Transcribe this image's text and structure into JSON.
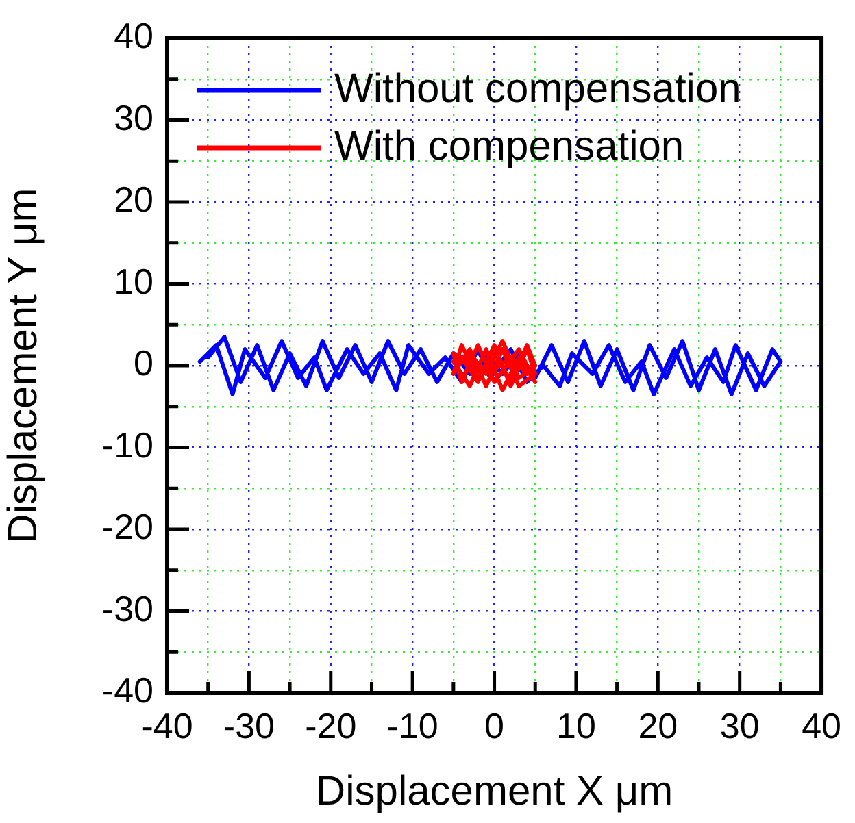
{
  "chart_data": {
    "type": "line",
    "xlabel": "Displacement X μm",
    "ylabel": "Displacement Y μm",
    "xlim": [
      -40,
      40
    ],
    "ylim": [
      -40,
      40
    ],
    "xticks": [
      -40,
      {
        "value": -35,
        "label": null
      },
      -30,
      {
        "value": -25,
        "label": null
      },
      -20,
      {
        "value": -15,
        "label": null
      },
      -10,
      {
        "value": -5,
        "label": null
      },
      0,
      {
        "value": 5,
        "label": null
      },
      10,
      {
        "value": 15,
        "label": null
      },
      20,
      {
        "value": 25,
        "label": null
      },
      30,
      {
        "value": 35,
        "label": null
      },
      40
    ],
    "yticks": [
      -40,
      {
        "value": -35,
        "label": null
      },
      -30,
      {
        "value": -25,
        "label": null
      },
      -20,
      {
        "value": -15,
        "label": null
      },
      -10,
      {
        "value": -5,
        "label": null
      },
      0,
      {
        "value": 5,
        "label": null
      },
      10,
      {
        "value": 15,
        "label": null
      },
      20,
      {
        "value": 25,
        "label": null
      },
      30,
      {
        "value": 35,
        "label": null
      },
      40
    ],
    "grid": true,
    "legend": "top left",
    "marker": "none",
    "line_style": "solid",
    "series": [
      {
        "name": "Without compensation",
        "color": "#0000ff",
        "x": [
          -35,
          -33,
          -31,
          -29,
          -27,
          -25,
          -23,
          -21,
          -19,
          -17,
          -15,
          -13,
          -11,
          -9,
          -7,
          -5,
          -3,
          -1,
          1,
          3,
          5,
          7,
          9,
          11,
          13,
          15,
          17,
          19,
          21,
          23,
          25,
          27,
          29,
          31,
          33,
          35,
          34,
          32,
          29.5,
          28,
          26,
          24,
          22,
          19.5,
          18,
          16,
          14,
          12,
          9.5,
          8,
          6,
          4,
          2,
          -0.5,
          -2,
          -4,
          -6,
          -8,
          -10.5,
          -12,
          -14,
          -16,
          -18,
          -20.5,
          -22,
          -24,
          -26,
          -28,
          -30.5,
          -32,
          -34,
          -36
        ],
        "values": [
          1,
          3.5,
          -2,
          2.5,
          -3,
          1.5,
          -2.5,
          3,
          -1.5,
          2.5,
          -2,
          3,
          -1,
          2,
          -2,
          1.5,
          -1,
          1,
          -1,
          1.5,
          -1.5,
          2.5,
          -2,
          3,
          -2.5,
          2,
          -3,
          2.5,
          -1.5,
          3,
          -3,
          2,
          -3.5,
          1.5,
          -2.5,
          0.5,
          2,
          -3,
          2.5,
          -2,
          1,
          -2.5,
          2,
          -3.5,
          0.5,
          -2,
          2.5,
          -1,
          1.5,
          -2.5,
          0,
          -2,
          2,
          -1.5,
          2,
          -2,
          1,
          -1,
          2.5,
          -3,
          1.5,
          -1,
          2,
          -3,
          1,
          -1.5,
          3,
          -1.5,
          2,
          -3.5,
          2.5,
          0.5
        ]
      },
      {
        "name": "With compensation",
        "color": "#ff0000",
        "x": [
          -4,
          -2,
          0,
          2,
          4,
          5,
          3,
          1,
          -1,
          -3,
          -5,
          -4,
          -2,
          0,
          2,
          4,
          5,
          3,
          1,
          -1,
          -3,
          -5,
          -3,
          -1,
          1,
          3,
          5,
          3,
          0,
          -2,
          -4,
          -5,
          -2,
          0,
          2,
          4
        ],
        "values": [
          1,
          -2,
          2.5,
          -2.5,
          2,
          -1,
          -2.5,
          2,
          -2.5,
          2,
          -1,
          2.5,
          -1.5,
          1.5,
          -2,
          2.5,
          0,
          -1.5,
          3,
          -1,
          1.5,
          0.5,
          -2.5,
          2,
          -3,
          1,
          -2,
          2,
          -2,
          2.5,
          -2,
          1.5,
          0,
          -0.5,
          1,
          -1
        ]
      }
    ]
  }
}
